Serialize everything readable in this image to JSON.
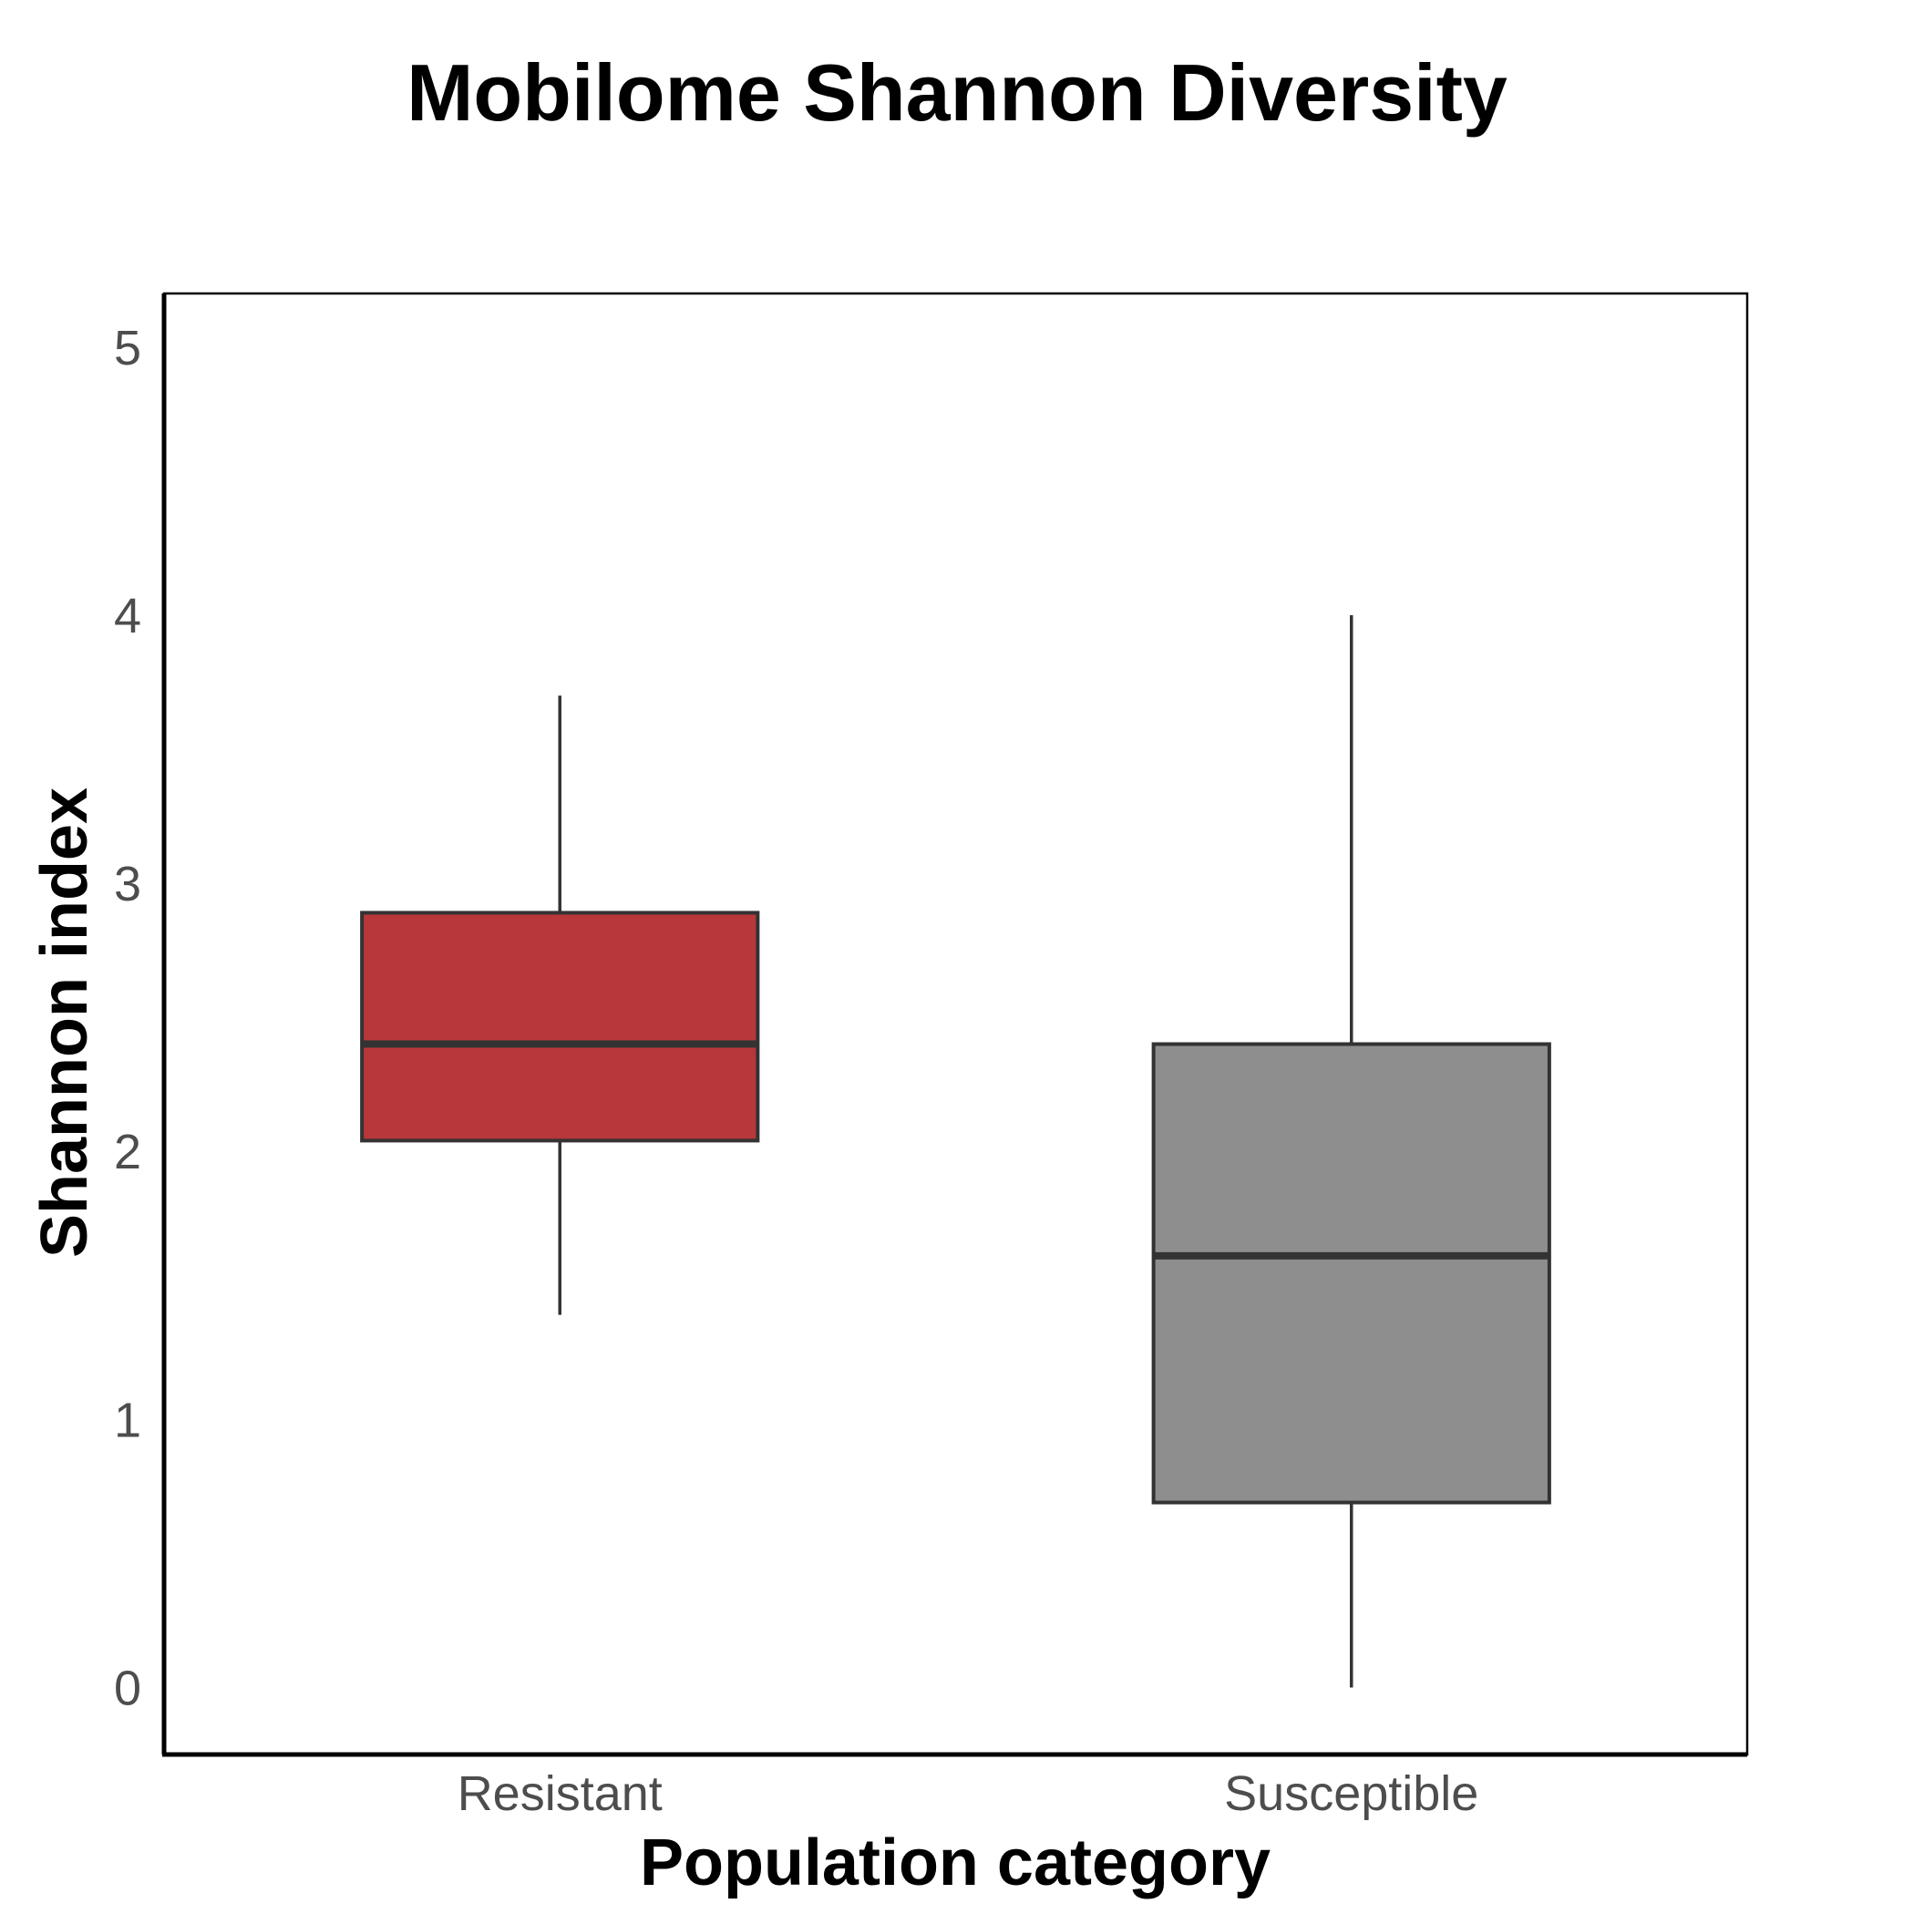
{
  "chart_data": {
    "type": "boxplot",
    "title": "Mobilome Shannon Diversity",
    "xlabel": "Population category",
    "ylabel": "Shannon index",
    "ylim": [
      -0.25,
      5.2
    ],
    "yticks": [
      "0",
      "1",
      "2",
      "3",
      "4",
      "5"
    ],
    "grid": false,
    "legend": "none",
    "categories": [
      "Resistant",
      "Susceptible"
    ],
    "boxes": [
      {
        "category": "Resistant",
        "whisker_low": 1.39,
        "q1": 2.04,
        "median": 2.4,
        "q3": 2.89,
        "whisker_high": 3.7,
        "color": "#b7373a"
      },
      {
        "category": "Susceptible",
        "whisker_low": 0.0,
        "q1": 0.69,
        "median": 1.61,
        "q3": 2.4,
        "whisker_high": 4.0,
        "color": "#8e8e8e"
      }
    ]
  }
}
